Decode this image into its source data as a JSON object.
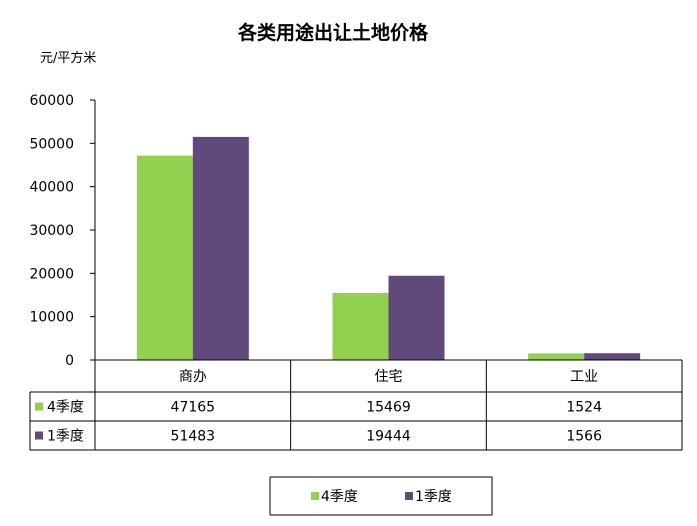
{
  "chart_data": {
    "type": "bar",
    "title": "各类用途出让土地价格",
    "ylabel": "元/平方米",
    "xlabel": "",
    "ylim": [
      0,
      60000
    ],
    "yticks": [
      0,
      10000,
      20000,
      30000,
      40000,
      50000,
      60000
    ],
    "categories": [
      "商办",
      "住宅",
      "工业"
    ],
    "series": [
      {
        "name": "4季度",
        "values": [
          47165,
          15469,
          1524
        ],
        "color": "#92d050"
      },
      {
        "name": "1季度",
        "values": [
          51483,
          19444,
          1566
        ],
        "color": "#604a7b"
      }
    ],
    "grid": false,
    "legend": "bottom",
    "data_table": true
  }
}
